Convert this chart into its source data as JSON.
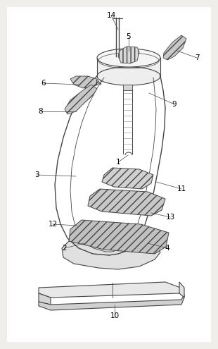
{
  "bg_color": "#f0eeeb",
  "line_color": "#444444",
  "fig_width": 3.1,
  "fig_height": 4.95,
  "dpi": 100,
  "label_data": [
    [
      "14",
      158,
      22,
      168,
      42
    ],
    [
      "5",
      183,
      52,
      183,
      72
    ],
    [
      "7",
      280,
      82,
      252,
      72
    ],
    [
      "6",
      62,
      118,
      112,
      120
    ],
    [
      "9",
      248,
      148,
      212,
      132
    ],
    [
      "8",
      58,
      158,
      108,
      158
    ],
    [
      "1",
      168,
      230,
      182,
      220
    ],
    [
      "3",
      52,
      248,
      108,
      250
    ],
    [
      "11",
      258,
      268,
      222,
      258
    ],
    [
      "12",
      75,
      318,
      110,
      320
    ],
    [
      "13",
      242,
      308,
      215,
      302
    ],
    [
      "2",
      92,
      352,
      120,
      345
    ],
    [
      "4",
      238,
      352,
      210,
      345
    ],
    [
      "10",
      163,
      448,
      163,
      432
    ]
  ]
}
